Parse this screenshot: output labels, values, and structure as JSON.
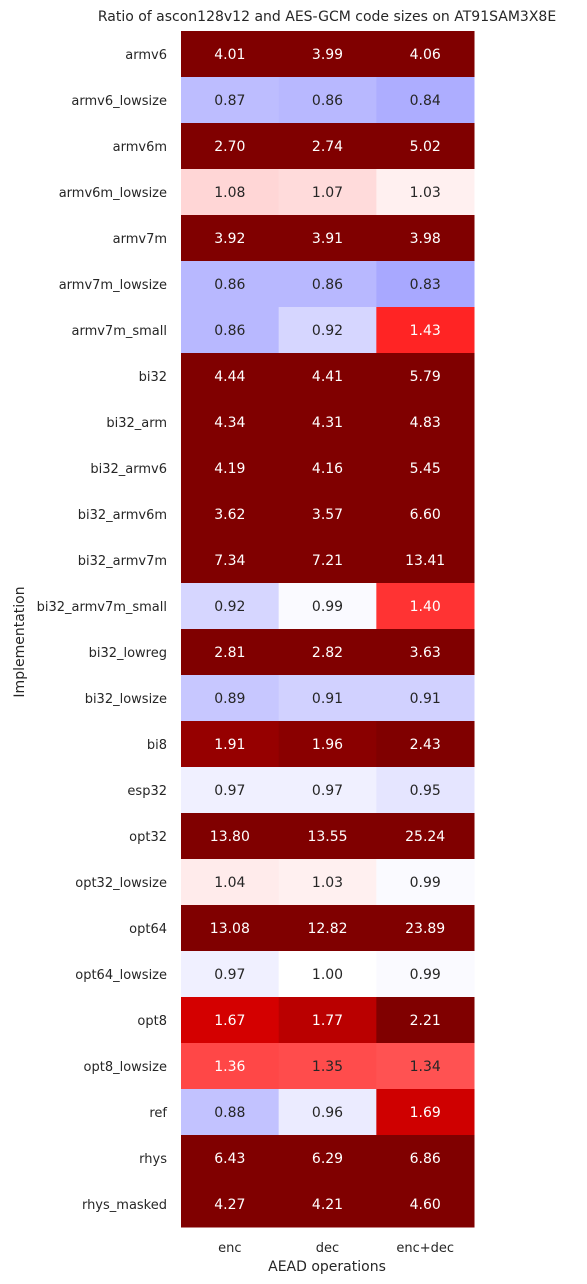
{
  "chart_data": {
    "type": "heatmap",
    "title": "Ratio of ascon128v12 and AES-GCM code sizes on AT91SAM3X8E",
    "xlabel": "AEAD operations",
    "ylabel": "Implementation",
    "columns": [
      "enc",
      "dec",
      "enc+dec"
    ],
    "rows": [
      "armv6",
      "armv6_lowsize",
      "armv6m",
      "armv6m_lowsize",
      "armv7m",
      "armv7m_lowsize",
      "armv7m_small",
      "bi32",
      "bi32_arm",
      "bi32_armv6",
      "bi32_armv6m",
      "bi32_armv7m",
      "bi32_armv7m_small",
      "bi32_lowreg",
      "bi32_lowsize",
      "bi8",
      "esp32",
      "opt32",
      "opt32_lowsize",
      "opt64",
      "opt64_lowsize",
      "opt8",
      "opt8_lowsize",
      "ref",
      "rhys",
      "rhys_masked"
    ],
    "values": [
      [
        4.01,
        3.99,
        4.06
      ],
      [
        0.87,
        0.86,
        0.84
      ],
      [
        2.7,
        2.74,
        5.02
      ],
      [
        1.08,
        1.07,
        1.03
      ],
      [
        3.92,
        3.91,
        3.98
      ],
      [
        0.86,
        0.86,
        0.83
      ],
      [
        0.86,
        0.92,
        1.43
      ],
      [
        4.44,
        4.41,
        5.79
      ],
      [
        4.34,
        4.31,
        4.83
      ],
      [
        4.19,
        4.16,
        5.45
      ],
      [
        3.62,
        3.57,
        6.6
      ],
      [
        7.34,
        7.21,
        13.41
      ],
      [
        0.92,
        0.99,
        1.4
      ],
      [
        2.81,
        2.82,
        3.63
      ],
      [
        0.89,
        0.91,
        0.91
      ],
      [
        1.91,
        1.96,
        2.43
      ],
      [
        0.97,
        0.97,
        0.95
      ],
      [
        13.8,
        13.55,
        25.24
      ],
      [
        1.04,
        1.03,
        0.99
      ],
      [
        13.08,
        12.82,
        23.89
      ],
      [
        0.97,
        1.0,
        0.99
      ],
      [
        1.67,
        1.77,
        2.21
      ],
      [
        1.36,
        1.35,
        1.34
      ],
      [
        0.88,
        0.96,
        1.69
      ],
      [
        6.43,
        6.29,
        6.86
      ],
      [
        4.27,
        4.21,
        4.6
      ]
    ],
    "colormap": "seismic",
    "vmin": 0,
    "vmax": 2,
    "colorbar": false,
    "grid": false
  }
}
